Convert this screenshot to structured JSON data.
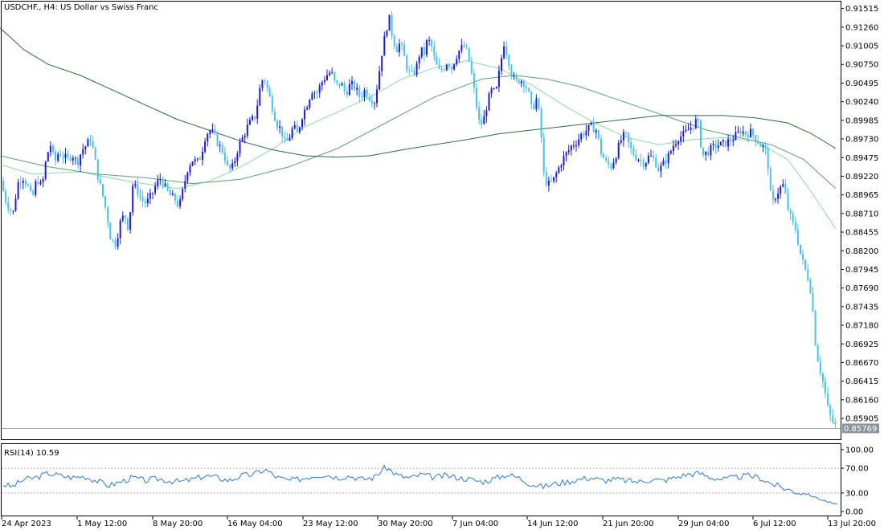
{
  "chart_data": {
    "type": "candlestick",
    "title": "USDCHF., H4:  US Dollar vs Swiss Franc",
    "symbol": "USDCHF.",
    "timeframe": "H4",
    "price_axis_ticks": [
      "0.91515",
      "0.91260",
      "0.91005",
      "0.90750",
      "0.90495",
      "0.90240",
      "0.89985",
      "0.89730",
      "0.89475",
      "0.89220",
      "0.88965",
      "0.88710",
      "0.88455",
      "0.88200",
      "0.87945",
      "0.87690",
      "0.87435",
      "0.87180",
      "0.86925",
      "0.86670",
      "0.86415",
      "0.86160",
      "0.85905"
    ],
    "current_price": "0.85769",
    "ylim": [
      0.8562,
      0.9161
    ],
    "time_axis_labels": [
      "24 Apr 2023",
      "1 May 12:00",
      "8 May 20:00",
      "16 May 04:00",
      "23 May 12:00",
      "30 May 20:00",
      "7 Jun 04:00",
      "14 Jun 12:00",
      "21 Jun 20:00",
      "29 Jun 04:00",
      "6 Jul 12:00",
      "13 Jul 20:00"
    ],
    "close_path": [
      [
        0,
        0.893
      ],
      [
        5,
        0.8895
      ],
      [
        10,
        0.8882
      ],
      [
        16,
        0.887
      ],
      [
        22,
        0.8912
      ],
      [
        28,
        0.8922
      ],
      [
        34,
        0.891
      ],
      [
        40,
        0.889
      ],
      [
        46,
        0.892
      ],
      [
        52,
        0.8905
      ],
      [
        58,
        0.895
      ],
      [
        63,
        0.8965
      ],
      [
        68,
        0.894
      ],
      [
        73,
        0.8955
      ],
      [
        78,
        0.895
      ],
      [
        84,
        0.8945
      ],
      [
        90,
        0.8952
      ],
      [
        96,
        0.894
      ],
      [
        102,
        0.8958
      ],
      [
        108,
        0.8965
      ],
      [
        113,
        0.8975
      ],
      [
        118,
        0.8945
      ],
      [
        123,
        0.8915
      ],
      [
        128,
        0.8895
      ],
      [
        133,
        0.887
      ],
      [
        138,
        0.8835
      ],
      [
        144,
        0.883
      ],
      [
        150,
        0.886
      ],
      [
        155,
        0.887
      ],
      [
        160,
        0.885
      ],
      [
        165,
        0.891
      ],
      [
        170,
        0.8905
      ],
      [
        176,
        0.889
      ],
      [
        182,
        0.8885
      ],
      [
        188,
        0.8895
      ],
      [
        194,
        0.891
      ],
      [
        200,
        0.892
      ],
      [
        206,
        0.8905
      ],
      [
        212,
        0.8895
      ],
      [
        218,
        0.889
      ],
      [
        223,
        0.888
      ],
      [
        229,
        0.891
      ],
      [
        234,
        0.8935
      ],
      [
        240,
        0.8945
      ],
      [
        245,
        0.894
      ],
      [
        250,
        0.895
      ],
      [
        255,
        0.8975
      ],
      [
        260,
        0.8985
      ],
      [
        266,
        0.898
      ],
      [
        272,
        0.8965
      ],
      [
        278,
        0.8955
      ],
      [
        284,
        0.893
      ],
      [
        290,
        0.8935
      ],
      [
        296,
        0.896
      ],
      [
        302,
        0.8975
      ],
      [
        308,
        0.899
      ],
      [
        313,
        0.8998
      ],
      [
        318,
        0.9005
      ],
      [
        323,
        0.904
      ],
      [
        328,
        0.906
      ],
      [
        333,
        0.904
      ],
      [
        338,
        0.902
      ],
      [
        344,
        0.8995
      ],
      [
        350,
        0.8985
      ],
      [
        355,
        0.8965
      ],
      [
        360,
        0.8975
      ],
      [
        365,
        0.899
      ],
      [
        370,
        0.898
      ],
      [
        376,
        0.9005
      ],
      [
        382,
        0.902
      ],
      [
        388,
        0.904
      ],
      [
        394,
        0.9035
      ],
      [
        400,
        0.905
      ],
      [
        406,
        0.906
      ],
      [
        412,
        0.9065
      ],
      [
        418,
        0.9045
      ],
      [
        424,
        0.905
      ],
      [
        430,
        0.9035
      ],
      [
        436,
        0.9048
      ],
      [
        442,
        0.9043
      ],
      [
        448,
        0.903
      ],
      [
        454,
        0.904
      ],
      [
        460,
        0.903
      ],
      [
        466,
        0.9025
      ],
      [
        470,
        0.905
      ],
      [
        475,
        0.909
      ],
      [
        480,
        0.912
      ],
      [
        484,
        0.914
      ],
      [
        488,
        0.9115
      ],
      [
        493,
        0.9095
      ],
      [
        498,
        0.9105
      ],
      [
        503,
        0.9085
      ],
      [
        508,
        0.9065
      ],
      [
        513,
        0.906
      ],
      [
        518,
        0.907
      ],
      [
        523,
        0.9095
      ],
      [
        528,
        0.909
      ],
      [
        532,
        0.911
      ],
      [
        537,
        0.91
      ],
      [
        542,
        0.9075
      ],
      [
        547,
        0.9065
      ],
      [
        552,
        0.907
      ],
      [
        557,
        0.908
      ],
      [
        562,
        0.907
      ],
      [
        567,
        0.9085
      ],
      [
        572,
        0.9095
      ],
      [
        577,
        0.91
      ],
      [
        582,
        0.909
      ],
      [
        587,
        0.906
      ],
      [
        592,
        0.9025
      ],
      [
        597,
        0.899
      ],
      [
        602,
        0.9
      ],
      [
        607,
        0.9025
      ],
      [
        612,
        0.904
      ],
      [
        617,
        0.9035
      ],
      [
        622,
        0.907
      ],
      [
        627,
        0.9105
      ],
      [
        632,
        0.9085
      ],
      [
        637,
        0.906
      ],
      [
        642,
        0.905
      ],
      [
        647,
        0.9055
      ],
      [
        652,
        0.905
      ],
      [
        657,
        0.904
      ],
      [
        662,
        0.901
      ],
      [
        667,
        0.903
      ],
      [
        672,
        0.9
      ],
      [
        677,
        0.892
      ],
      [
        682,
        0.891
      ],
      [
        688,
        0.8915
      ],
      [
        694,
        0.893
      ],
      [
        700,
        0.8945
      ],
      [
        706,
        0.8955
      ],
      [
        712,
        0.8965
      ],
      [
        718,
        0.897
      ],
      [
        724,
        0.898
      ],
      [
        730,
        0.8985
      ],
      [
        736,
        0.899
      ],
      [
        742,
        0.8985
      ],
      [
        748,
        0.8955
      ],
      [
        754,
        0.894
      ],
      [
        760,
        0.8935
      ],
      [
        766,
        0.895
      ],
      [
        772,
        0.897
      ],
      [
        778,
        0.898
      ],
      [
        784,
        0.896
      ],
      [
        790,
        0.895
      ],
      [
        796,
        0.8945
      ],
      [
        802,
        0.894
      ],
      [
        808,
        0.895
      ],
      [
        814,
        0.8945
      ],
      [
        820,
        0.893
      ],
      [
        826,
        0.894
      ],
      [
        832,
        0.895
      ],
      [
        838,
        0.8965
      ],
      [
        844,
        0.8975
      ],
      [
        850,
        0.8978
      ],
      [
        856,
        0.8985
      ],
      [
        862,
        0.8992
      ],
      [
        868,
        0.9
      ],
      [
        874,
        0.895
      ],
      [
        880,
        0.8955
      ],
      [
        886,
        0.896
      ],
      [
        892,
        0.8965
      ],
      [
        898,
        0.8965
      ],
      [
        904,
        0.8968
      ],
      [
        910,
        0.8972
      ],
      [
        916,
        0.8978
      ],
      [
        922,
        0.8985
      ],
      [
        928,
        0.898
      ],
      [
        934,
        0.8982
      ],
      [
        940,
        0.8975
      ],
      [
        946,
        0.8965
      ],
      [
        952,
        0.896
      ],
      [
        956,
        0.8935
      ],
      [
        960,
        0.888
      ],
      [
        965,
        0.8895
      ],
      [
        970,
        0.8905
      ],
      [
        975,
        0.891
      ],
      [
        980,
        0.888
      ],
      [
        985,
        0.886
      ],
      [
        990,
        0.885
      ],
      [
        995,
        0.882
      ],
      [
        1000,
        0.88
      ],
      [
        1005,
        0.8785
      ],
      [
        1010,
        0.876
      ],
      [
        1014,
        0.87
      ],
      [
        1018,
        0.867
      ],
      [
        1022,
        0.865
      ],
      [
        1026,
        0.863
      ],
      [
        1030,
        0.8605
      ],
      [
        1034,
        0.859
      ],
      [
        1038,
        0.8583
      ],
      [
        1042,
        0.8577
      ]
    ],
    "moving_averages": [
      {
        "color": "#8fd8a8",
        "points": [
          [
            0,
            0.8938
          ],
          [
            40,
            0.8925
          ],
          [
            100,
            0.8928
          ],
          [
            160,
            0.8915
          ],
          [
            220,
            0.8905
          ],
          [
            260,
            0.8915
          ],
          [
            300,
            0.8935
          ],
          [
            340,
            0.896
          ],
          [
            380,
            0.899
          ],
          [
            420,
            0.901
          ],
          [
            460,
            0.903
          ],
          [
            500,
            0.9055
          ],
          [
            540,
            0.907
          ],
          [
            580,
            0.908
          ],
          [
            620,
            0.907
          ],
          [
            660,
            0.9048
          ],
          [
            700,
            0.902
          ],
          [
            740,
            0.8995
          ],
          [
            780,
            0.8975
          ],
          [
            820,
            0.8965
          ],
          [
            860,
            0.8972
          ],
          [
            900,
            0.8975
          ],
          [
            940,
            0.897
          ],
          [
            980,
            0.8945
          ],
          [
            1010,
            0.89
          ],
          [
            1040,
            0.885
          ]
        ]
      },
      {
        "color": "#5aa36e",
        "points": [
          [
            0,
            0.895
          ],
          [
            60,
            0.8935
          ],
          [
            120,
            0.8925
          ],
          [
            180,
            0.892
          ],
          [
            240,
            0.8912
          ],
          [
            300,
            0.8918
          ],
          [
            360,
            0.8935
          ],
          [
            420,
            0.896
          ],
          [
            480,
            0.8995
          ],
          [
            540,
            0.903
          ],
          [
            600,
            0.9055
          ],
          [
            640,
            0.906
          ],
          [
            680,
            0.9055
          ],
          [
            720,
            0.9045
          ],
          [
            760,
            0.903
          ],
          [
            800,
            0.9015
          ],
          [
            840,
            0.9
          ],
          [
            880,
            0.8985
          ],
          [
            920,
            0.8975
          ],
          [
            960,
            0.8965
          ],
          [
            1000,
            0.8945
          ],
          [
            1040,
            0.8905
          ]
        ]
      },
      {
        "color": "#2e6b47",
        "points": [
          [
            0,
            0.9125
          ],
          [
            30,
            0.9095
          ],
          [
            60,
            0.9075
          ],
          [
            100,
            0.906
          ],
          [
            140,
            0.904
          ],
          [
            180,
            0.902
          ],
          [
            220,
            0.9
          ],
          [
            260,
            0.8985
          ],
          [
            300,
            0.897
          ],
          [
            340,
            0.8958
          ],
          [
            380,
            0.895
          ],
          [
            420,
            0.8948
          ],
          [
            460,
            0.895
          ],
          [
            500,
            0.8958
          ],
          [
            540,
            0.8965
          ],
          [
            580,
            0.8972
          ],
          [
            620,
            0.898
          ],
          [
            660,
            0.8985
          ],
          [
            700,
            0.899
          ],
          [
            740,
            0.8995
          ],
          [
            780,
            0.9
          ],
          [
            820,
            0.9005
          ],
          [
            860,
            0.9005
          ],
          [
            900,
            0.9005
          ],
          [
            940,
            0.9002
          ],
          [
            980,
            0.8995
          ],
          [
            1010,
            0.898
          ],
          [
            1040,
            0.896
          ]
        ]
      }
    ],
    "rsi": {
      "label": "RSI(14) 10.59",
      "ticks": [
        "100.00",
        "70.00",
        "30.00",
        "0.00"
      ],
      "levels": [
        70,
        30
      ],
      "current": 10.59,
      "points": [
        [
          0,
          45
        ],
        [
          15,
          40
        ],
        [
          30,
          52
        ],
        [
          45,
          55
        ],
        [
          60,
          62
        ],
        [
          75,
          58
        ],
        [
          90,
          55
        ],
        [
          105,
          57
        ],
        [
          120,
          50
        ],
        [
          135,
          42
        ],
        [
          150,
          48
        ],
        [
          165,
          55
        ],
        [
          180,
          50
        ],
        [
          195,
          53
        ],
        [
          210,
          50
        ],
        [
          225,
          48
        ],
        [
          240,
          52
        ],
        [
          255,
          58
        ],
        [
          270,
          55
        ],
        [
          285,
          50
        ],
        [
          300,
          58
        ],
        [
          315,
          60
        ],
        [
          330,
          68
        ],
        [
          345,
          55
        ],
        [
          360,
          50
        ],
        [
          375,
          53
        ],
        [
          390,
          58
        ],
        [
          405,
          60
        ],
        [
          420,
          55
        ],
        [
          435,
          58
        ],
        [
          450,
          52
        ],
        [
          465,
          55
        ],
        [
          480,
          72
        ],
        [
          495,
          58
        ],
        [
          510,
          54
        ],
        [
          525,
          60
        ],
        [
          540,
          55
        ],
        [
          555,
          58
        ],
        [
          570,
          55
        ],
        [
          585,
          52
        ],
        [
          600,
          48
        ],
        [
          615,
          53
        ],
        [
          630,
          60
        ],
        [
          645,
          55
        ],
        [
          660,
          45
        ],
        [
          675,
          40
        ],
        [
          690,
          45
        ],
        [
          705,
          48
        ],
        [
          720,
          52
        ],
        [
          735,
          55
        ],
        [
          750,
          50
        ],
        [
          765,
          52
        ],
        [
          780,
          50
        ],
        [
          795,
          48
        ],
        [
          810,
          52
        ],
        [
          825,
          50
        ],
        [
          840,
          55
        ],
        [
          855,
          60
        ],
        [
          870,
          62
        ],
        [
          885,
          55
        ],
        [
          900,
          52
        ],
        [
          915,
          55
        ],
        [
          930,
          58
        ],
        [
          945,
          55
        ],
        [
          960,
          45
        ],
        [
          975,
          38
        ],
        [
          990,
          32
        ],
        [
          1005,
          28
        ],
        [
          1020,
          20
        ],
        [
          1042,
          10.59
        ]
      ]
    }
  }
}
